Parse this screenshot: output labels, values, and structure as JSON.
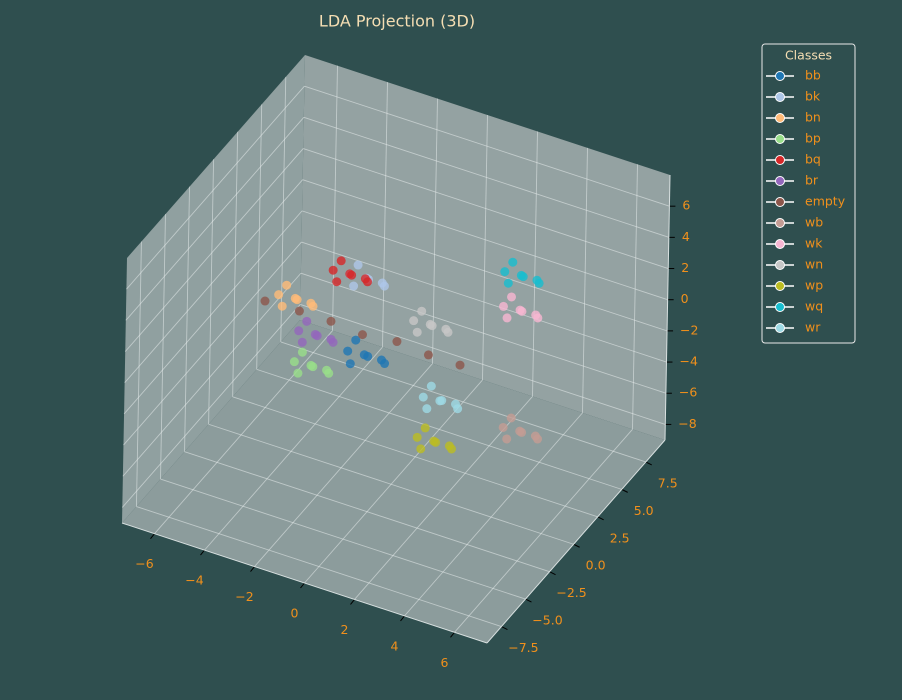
{
  "chart_data": {
    "type": "scatter3d",
    "title": "LDA Projection (3D)",
    "xlim": [
      -7.3,
      7.3
    ],
    "ylim": [
      -9,
      9.5
    ],
    "zlim": [
      -9,
      8
    ],
    "xticks": [
      {
        "value": -6,
        "label": "−6"
      },
      {
        "value": -4,
        "label": "−4"
      },
      {
        "value": -2,
        "label": "−2"
      },
      0,
      2,
      4,
      6
    ],
    "yticks": [
      {
        "value": -7.5,
        "label": "−7.5"
      },
      {
        "value": -5.0,
        "label": "−5.0"
      },
      {
        "value": -2.5,
        "label": "−2.5"
      },
      {
        "value": 0,
        "label": "0.0"
      },
      2.5,
      {
        "value": 5,
        "label": "5.0"
      },
      7.5
    ],
    "zticks": [
      {
        "value": -8,
        "label": "−8"
      },
      {
        "value": -6,
        "label": "−6"
      },
      {
        "value": -4,
        "label": "−4"
      },
      {
        "value": -2,
        "label": "−2"
      },
      0,
      2,
      4,
      6
    ],
    "grid": true,
    "legend": "upper right",
    "legend_title": "Classes",
    "series": [
      {
        "name": "bb",
        "color": "#1f77b4",
        "x": [
          -1.2,
          -0.5,
          -1.7,
          -0.8,
          -1.6,
          -0.4,
          -1.9
        ],
        "y": [
          0.1,
          0.4,
          0.5,
          -0.6,
          -0.3,
          -0.2,
          0.2
        ],
        "z": [
          -1.4,
          -1.8,
          -1.0,
          -0.8,
          -1.9,
          -1.1,
          -1.6
        ]
      },
      {
        "name": "bk",
        "color": "#aec7e8",
        "x": [
          -1.8,
          -1.2,
          -2.3,
          -1.5,
          -2.2,
          -1.1,
          -2.5
        ],
        "y": [
          1.8,
          2.1,
          2.2,
          1.2,
          1.5,
          1.6,
          1.9
        ],
        "z": [
          2.0,
          1.6,
          2.3,
          2.5,
          1.5,
          2.2,
          1.8
        ]
      },
      {
        "name": "bn",
        "color": "#ffbb78",
        "x": [
          -3.8,
          -3.2,
          -4.3,
          -3.5,
          -4.2,
          -3.1,
          -4.5
        ],
        "y": [
          -0.4,
          -0.1,
          0.0,
          -1.0,
          -0.7,
          -0.6,
          -0.3
        ],
        "z": [
          1.2,
          0.8,
          1.5,
          1.7,
          0.7,
          1.4,
          1.0
        ]
      },
      {
        "name": "bp",
        "color": "#98df8a",
        "x": [
          -2.9,
          -2.3,
          -3.4,
          -2.6,
          -3.3,
          -2.2,
          -3.6
        ],
        "y": [
          -1.0,
          -0.7,
          -0.6,
          -1.6,
          -1.3,
          -1.2,
          -0.9
        ],
        "z": [
          -2.2,
          -2.6,
          -1.9,
          -1.7,
          -2.7,
          -2.0,
          -2.4
        ]
      },
      {
        "name": "bq",
        "color": "#d62728",
        "x": [
          -2.4,
          -1.8,
          -2.9,
          -2.1,
          -2.8,
          -1.7,
          -3.1
        ],
        "y": [
          1.6,
          1.9,
          2.0,
          1.0,
          1.3,
          1.4,
          1.7
        ],
        "z": [
          2.1,
          1.7,
          2.4,
          2.6,
          1.6,
          2.3,
          1.9
        ]
      },
      {
        "name": "br",
        "color": "#9467bd",
        "x": [
          -2.9,
          -2.3,
          -3.4,
          -2.6,
          -3.3,
          -2.2,
          -3.6
        ],
        "y": [
          -0.6,
          -0.3,
          -0.2,
          -1.2,
          -0.9,
          -0.8,
          -0.5
        ],
        "z": [
          -0.5,
          -0.9,
          -0.2,
          0.0,
          -1.0,
          -0.3,
          -0.7
        ]
      },
      {
        "name": "empty",
        "color": "#8c564b",
        "x": [
          -5.0,
          -3.7,
          -2.4,
          -1.1,
          0.2,
          1.5,
          2.8
        ],
        "y": [
          -0.4,
          -0.2,
          -0.3,
          -0.4,
          -0.2,
          -0.3,
          -0.4
        ],
        "z": [
          0.4,
          0.3,
          0.4,
          0.3,
          0.4,
          0.3,
          0.4
        ]
      },
      {
        "name": "wb",
        "color": "#c49c94",
        "x": [
          5.0,
          5.6,
          4.5,
          5.3,
          4.6,
          5.7,
          4.3
        ],
        "y": [
          0.2,
          0.5,
          0.6,
          -0.4,
          -0.1,
          0.0,
          0.3
        ],
        "z": [
          -3.1,
          -3.5,
          -2.8,
          -2.6,
          -3.6,
          -2.9,
          -3.3
        ]
      },
      {
        "name": "wk",
        "color": "#f7b6d2",
        "x": [
          3.5,
          4.1,
          3.0,
          3.8,
          3.1,
          4.2,
          2.8
        ],
        "y": [
          4.0,
          4.3,
          4.4,
          3.4,
          3.7,
          3.8,
          4.1
        ],
        "z": [
          1.2,
          0.8,
          1.5,
          1.7,
          0.7,
          1.4,
          1.0
        ]
      },
      {
        "name": "wn",
        "color": "#c7c7c7",
        "x": [
          1.1,
          1.7,
          0.6,
          1.4,
          0.7,
          1.8,
          0.4
        ],
        "y": [
          0.9,
          1.2,
          1.3,
          0.3,
          0.6,
          0.7,
          1.0
        ],
        "z": [
          1.2,
          0.8,
          1.5,
          1.7,
          0.7,
          1.4,
          1.0
        ]
      },
      {
        "name": "wp",
        "color": "#bcbd22",
        "x": [
          2.6,
          3.2,
          2.1,
          2.9,
          2.2,
          3.3,
          1.9
        ],
        "y": [
          -2.5,
          -2.2,
          -2.1,
          -3.1,
          -2.8,
          -2.7,
          -2.4
        ],
        "z": [
          -3.1,
          -3.5,
          -2.8,
          -2.6,
          -3.6,
          -2.9,
          -3.3
        ]
      },
      {
        "name": "wq",
        "color": "#17becf",
        "x": [
          3.3,
          3.9,
          2.8,
          3.6,
          2.9,
          4.0,
          2.6
        ],
        "y": [
          4.6,
          4.9,
          5.0,
          4.0,
          4.3,
          4.4,
          4.7
        ],
        "z": [
          2.9,
          2.5,
          3.2,
          3.4,
          2.4,
          3.1,
          2.7
        ]
      },
      {
        "name": "wr",
        "color": "#9edae5",
        "x": [
          2.4,
          3.0,
          1.9,
          2.7,
          2.0,
          3.1,
          1.7
        ],
        "y": [
          -1.4,
          -1.1,
          -1.0,
          -2.0,
          -1.7,
          -1.6,
          -1.3
        ],
        "z": [
          -1.4,
          -1.8,
          -1.0,
          -0.8,
          -1.9,
          -1.1,
          -1.6
        ]
      }
    ]
  }
}
